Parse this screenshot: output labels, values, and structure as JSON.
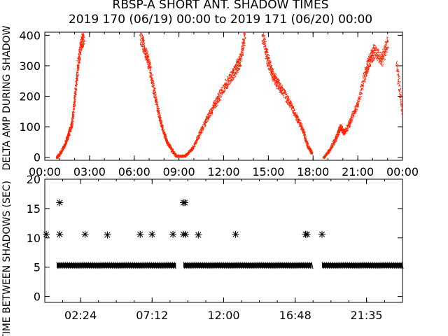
{
  "title": "RBSP-A SHORT ANT. SHADOW TIMES",
  "subtitle": "2019 170 (06/19) 00:00 to 2019 171 (06/20) 00:00",
  "colors": {
    "background": "#ffffff",
    "axes": "#000000",
    "amp_points": "#ff2200",
    "gap_points": "#000000"
  },
  "chart_data": [
    {
      "type": "scatter",
      "ylabel": "DELTA AMP DURING SHADOW",
      "ylim": [
        -10,
        410
      ],
      "xlim": [
        0,
        24
      ],
      "x_unit": "hours",
      "x_ticks": [
        "00:00",
        "03:00",
        "06:00",
        "09:00",
        "12:00",
        "15:00",
        "18:00",
        "21:00",
        "00:00"
      ],
      "y_ticks": [
        "0",
        "100",
        "200",
        "300",
        "400"
      ],
      "marker_color": "#ff2200",
      "points": [
        [
          0.8,
          0
        ],
        [
          1.1,
          20
        ],
        [
          1.4,
          50
        ],
        [
          1.6,
          80
        ],
        [
          1.8,
          110
        ],
        [
          2.0,
          200
        ],
        [
          2.2,
          300
        ],
        [
          2.4,
          370
        ],
        [
          2.6,
          400
        ],
        [
          6.4,
          400
        ],
        [
          6.7,
          350
        ],
        [
          7.0,
          300
        ],
        [
          7.3,
          220
        ],
        [
          7.6,
          150
        ],
        [
          7.9,
          90
        ],
        [
          8.2,
          50
        ],
        [
          8.5,
          25
        ],
        [
          8.8,
          5
        ],
        [
          9.4,
          5
        ],
        [
          9.9,
          30
        ],
        [
          10.4,
          80
        ],
        [
          10.9,
          130
        ],
        [
          11.4,
          175
        ],
        [
          11.9,
          220
        ],
        [
          12.4,
          260
        ],
        [
          12.8,
          290
        ],
        [
          13.1,
          320
        ],
        [
          13.4,
          400
        ],
        [
          14.6,
          400
        ],
        [
          14.9,
          330
        ],
        [
          15.2,
          280
        ],
        [
          15.5,
          250
        ],
        [
          15.9,
          220
        ],
        [
          16.4,
          180
        ],
        [
          16.9,
          130
        ],
        [
          17.3,
          90
        ],
        [
          17.6,
          40
        ],
        [
          17.9,
          15
        ],
        [
          18.7,
          0
        ],
        [
          19.1,
          25
        ],
        [
          19.5,
          60
        ],
        [
          19.8,
          100
        ],
        [
          20.1,
          80
        ],
        [
          20.5,
          120
        ],
        [
          21.0,
          180
        ],
        [
          21.5,
          280
        ],
        [
          21.8,
          320
        ],
        [
          22.1,
          350
        ],
        [
          22.6,
          320
        ],
        [
          23.0,
          380
        ],
        [
          23.6,
          300
        ],
        [
          24.0,
          140
        ]
      ]
    },
    {
      "type": "scatter",
      "ylabel": "TIME BETWEEN SHADOWS (SEC)",
      "ylim": [
        -1,
        20
      ],
      "xlim": [
        0,
        24
      ],
      "x_unit": "hours",
      "x_ticks": [
        "02:24",
        "07:12",
        "12:00",
        "16:48",
        "21:35"
      ],
      "y_ticks": [
        "0",
        "5",
        "10",
        "15",
        "20"
      ],
      "marker": "asterisk",
      "marker_color": "#000000",
      "bands": [
        {
          "x_start": 0.8,
          "x_end": 8.8,
          "y": 5.3
        },
        {
          "x_start": 9.3,
          "x_end": 17.9,
          "y": 5.3
        },
        {
          "x_start": 18.6,
          "x_end": 24.0,
          "y": 5.3
        }
      ],
      "points": [
        [
          0.1,
          10.6
        ],
        [
          1.0,
          16.0
        ],
        [
          1.0,
          10.6
        ],
        [
          2.7,
          10.6
        ],
        [
          4.2,
          10.5
        ],
        [
          6.4,
          10.6
        ],
        [
          7.2,
          10.6
        ],
        [
          8.6,
          10.6
        ],
        [
          9.3,
          16.0
        ],
        [
          9.4,
          16.0
        ],
        [
          9.3,
          10.6
        ],
        [
          9.45,
          10.6
        ],
        [
          10.3,
          10.5
        ],
        [
          12.8,
          10.6
        ],
        [
          17.5,
          10.6
        ],
        [
          17.6,
          10.6
        ],
        [
          18.6,
          10.6
        ]
      ]
    }
  ]
}
